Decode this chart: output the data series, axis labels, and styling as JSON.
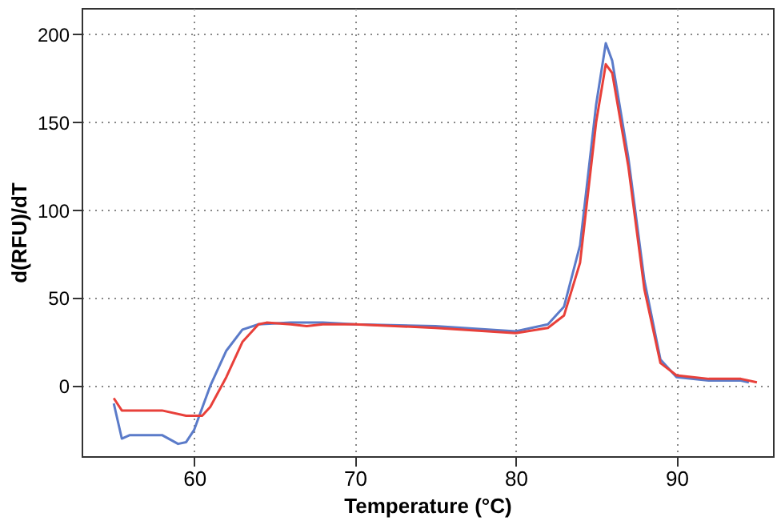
{
  "chart_data": {
    "type": "line",
    "xlabel": "Temperature (°C)",
    "ylabel": "d(RFU)/dT",
    "xlim": [
      53,
      96
    ],
    "ylim": [
      -40,
      215
    ],
    "xticks": [
      60,
      70,
      80,
      90
    ],
    "yticks": [
      0,
      50,
      100,
      150,
      200
    ],
    "grid": true,
    "line_style": "solid",
    "marker": "none",
    "series": [
      {
        "color": "#5b7bc9",
        "x": [
          55,
          55.5,
          56,
          58,
          59,
          59.5,
          60,
          61,
          62,
          63,
          64,
          66,
          68,
          70,
          75,
          80,
          82,
          83,
          84,
          85,
          85.6,
          86,
          87,
          88,
          89,
          90,
          92,
          94,
          94.5
        ],
        "values": [
          -10,
          -30,
          -28,
          -28,
          -33,
          -32,
          -25,
          0,
          20,
          32,
          35,
          36,
          36,
          35,
          34,
          31,
          35,
          45,
          80,
          160,
          195,
          185,
          130,
          60,
          15,
          5,
          3,
          3,
          2
        ]
      },
      {
        "color": "#e8403a",
        "x": [
          55,
          55.5,
          58,
          59.5,
          60.5,
          61,
          62,
          63,
          64,
          64.5,
          66,
          67,
          68,
          70,
          75,
          80,
          82,
          83,
          84,
          85,
          85.6,
          86,
          87,
          88,
          89,
          90,
          92,
          94,
          95
        ],
        "values": [
          -7,
          -14,
          -14,
          -17,
          -17,
          -12,
          5,
          25,
          35,
          36,
          35,
          34,
          35,
          35,
          33,
          30,
          33,
          40,
          70,
          150,
          183,
          178,
          125,
          55,
          13,
          6,
          4,
          4,
          2
        ]
      }
    ]
  }
}
